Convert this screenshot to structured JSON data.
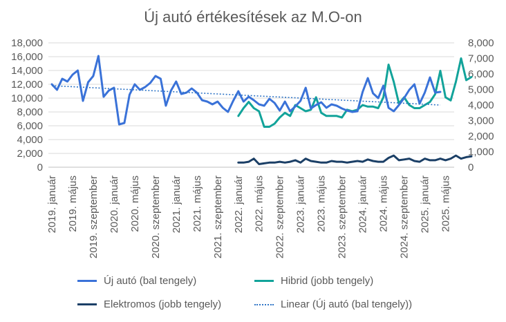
{
  "chart_data": {
    "type": "line",
    "title": "Új autó értékesítések az M.O-on",
    "x_tick_labels": [
      "2019. január",
      "2019. május",
      "2019. szeptember",
      "2020. január",
      "2020. május",
      "2020. szeptember",
      "2021. január",
      "2021. május",
      "2021. szeptember",
      "2022. január",
      "2022. május",
      "2022. szeptember",
      "2023. január",
      "2023. május",
      "2023. szeptember",
      "2024. január",
      "2024. május",
      "2024. szeptember",
      "2025. január",
      "2025. május"
    ],
    "y_left": {
      "min": 0,
      "max": 18000,
      "ticks": [
        "0",
        "2,000",
        "4,000",
        "6,000",
        "8,000",
        "10,000",
        "12,000",
        "14,000",
        "16,000",
        "18,000"
      ]
    },
    "y_right": {
      "min": 0,
      "max": 8000,
      "ticks": [
        "0",
        "1,000",
        "2,000",
        "3,000",
        "4,000",
        "5,000",
        "6,000",
        "7,000",
        "8,000"
      ]
    },
    "months_total": 78,
    "series": [
      {
        "name": "Új autó (bal tengely)",
        "axis": "left",
        "color": "#3a72d8",
        "start_index": 0,
        "values": [
          12000,
          11200,
          12800,
          12400,
          13400,
          14000,
          9600,
          12300,
          13200,
          16100,
          10200,
          11100,
          11500,
          6200,
          6400,
          10500,
          12000,
          11200,
          11600,
          12200,
          13200,
          12800,
          8900,
          11100,
          12400,
          10600,
          10800,
          11400,
          10800,
          9700,
          9500,
          9100,
          9500,
          8600,
          8000,
          9600,
          11000,
          9500,
          10200,
          9700,
          9100,
          8900,
          9900,
          9300,
          8200,
          9500,
          8100,
          8800,
          9600,
          11500,
          8500,
          9000,
          9400,
          8600,
          9100,
          8900,
          8500,
          8200,
          8000,
          8100,
          10900,
          12900,
          10700,
          10000,
          11800,
          8600,
          8100,
          9000,
          10000,
          11200,
          12000,
          9200,
          10800,
          13000,
          10800,
          10900,
          null,
          null
        ]
      },
      {
        "name": "Hibrid (jobb tengely)",
        "axis": "right",
        "color": "#12a39a",
        "start_index": 36,
        "values": [
          3300,
          3800,
          4200,
          3800,
          3600,
          2600,
          2600,
          2800,
          3200,
          3500,
          3300,
          4000,
          3800,
          3600,
          3700,
          4500,
          3500,
          3300,
          3300,
          3300,
          3200,
          3700,
          3600,
          3700,
          4000,
          3900,
          3900,
          3800,
          4500,
          6600,
          5500,
          4100,
          4500,
          4000,
          3800,
          3800,
          4000,
          4200,
          4700,
          6200,
          4500,
          4300,
          5500,
          7000,
          5600,
          5800
        ]
      },
      {
        "name": "Elektromos (jobb tengely)",
        "axis": "right",
        "color": "#1b3f66",
        "start_index": 36,
        "values": [
          300,
          300,
          350,
          550,
          200,
          250,
          300,
          300,
          350,
          300,
          350,
          450,
          300,
          550,
          400,
          350,
          300,
          300,
          400,
          350,
          350,
          300,
          350,
          400,
          350,
          500,
          400,
          350,
          350,
          600,
          750,
          450,
          500,
          550,
          400,
          350,
          550,
          450,
          450,
          550,
          450,
          550,
          750,
          550,
          650,
          700
        ]
      }
    ],
    "trendline": {
      "name": "Linear (Új autó (bal tengely))",
      "axis": "left",
      "color": "#2e74c6",
      "start_value": 11800,
      "end_value": 9000,
      "start_index": 0,
      "end_index": 75
    },
    "legend_position": "bottom",
    "gridlines": true
  }
}
